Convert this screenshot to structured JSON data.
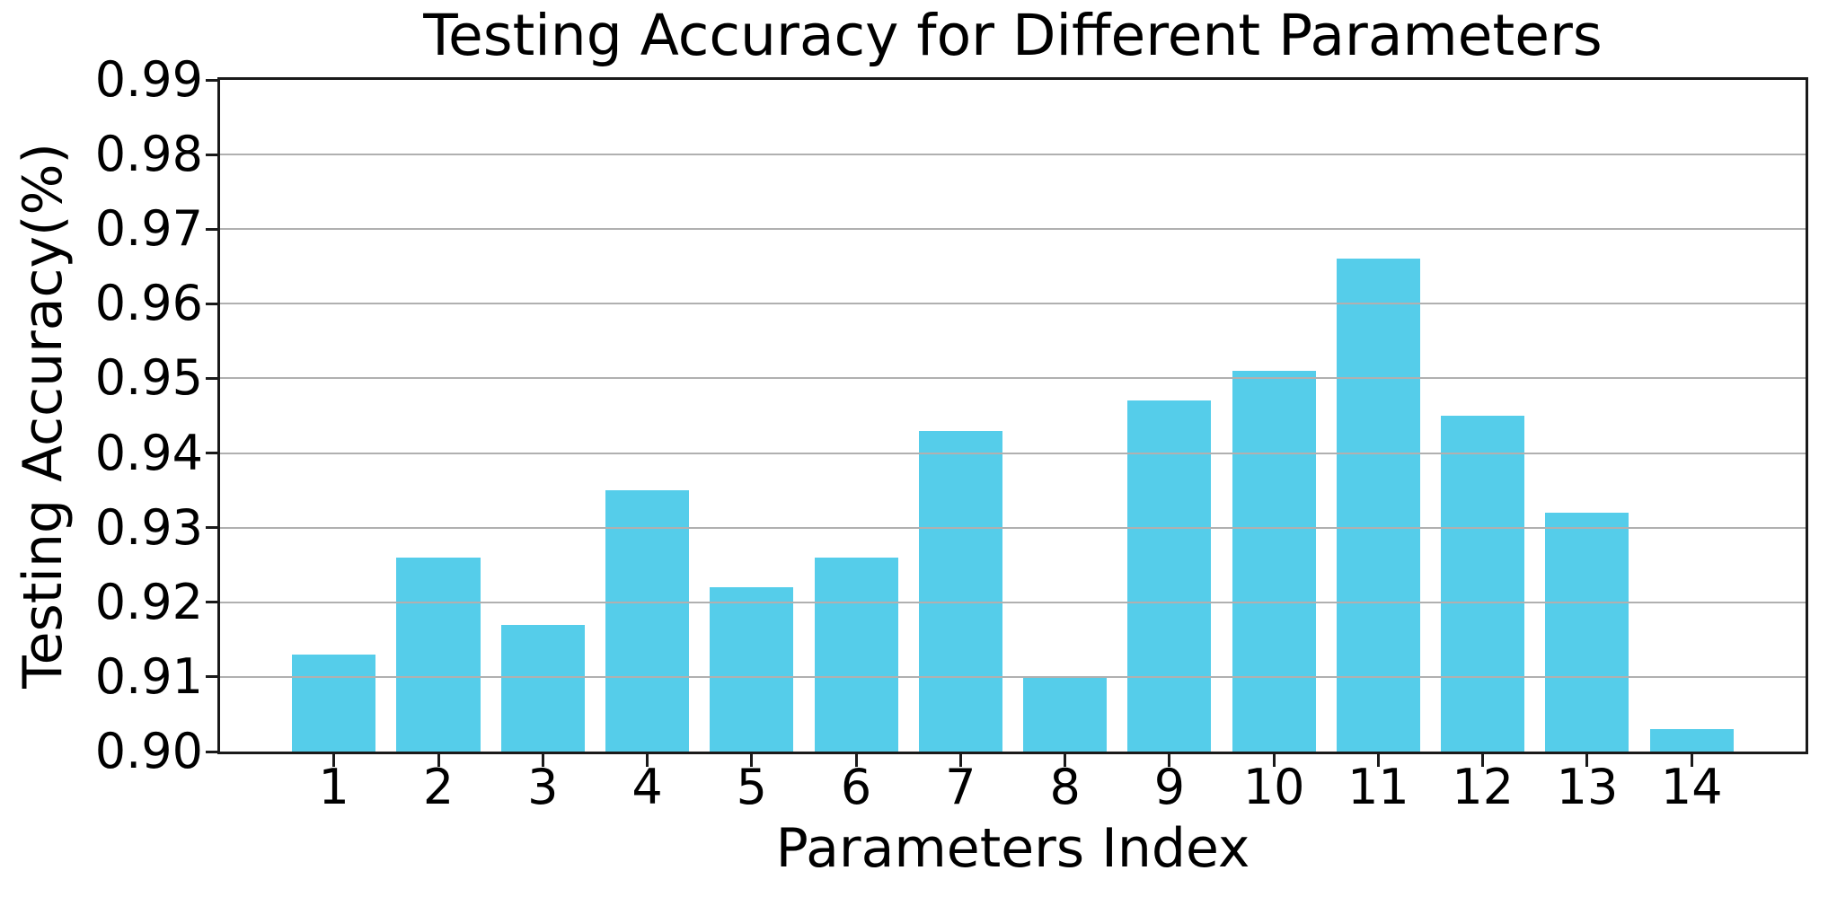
{
  "chart_data": {
    "type": "bar",
    "title": "Testing Accuracy for Different Parameters",
    "xlabel": "Parameters Index",
    "ylabel": "Testing Accuracy(%)",
    "categories": [
      "1",
      "2",
      "3",
      "4",
      "5",
      "6",
      "7",
      "8",
      "9",
      "10",
      "11",
      "12",
      "13",
      "14"
    ],
    "values": [
      0.913,
      0.926,
      0.917,
      0.935,
      0.922,
      0.926,
      0.943,
      0.91,
      0.947,
      0.951,
      0.966,
      0.945,
      0.932,
      0.903
    ],
    "yticks": [
      "0.90",
      "0.91",
      "0.92",
      "0.93",
      "0.94",
      "0.95",
      "0.96",
      "0.97",
      "0.98",
      "0.99"
    ],
    "ylim": [
      0.9,
      0.99
    ],
    "xlim": [
      -0.09,
      15.09
    ],
    "bar_width": 0.8,
    "bar_color": "#55CDEA",
    "grid_color": "#B0B0B0",
    "axis_color": "#1A1A1A",
    "grid": "on",
    "legend": "none"
  }
}
